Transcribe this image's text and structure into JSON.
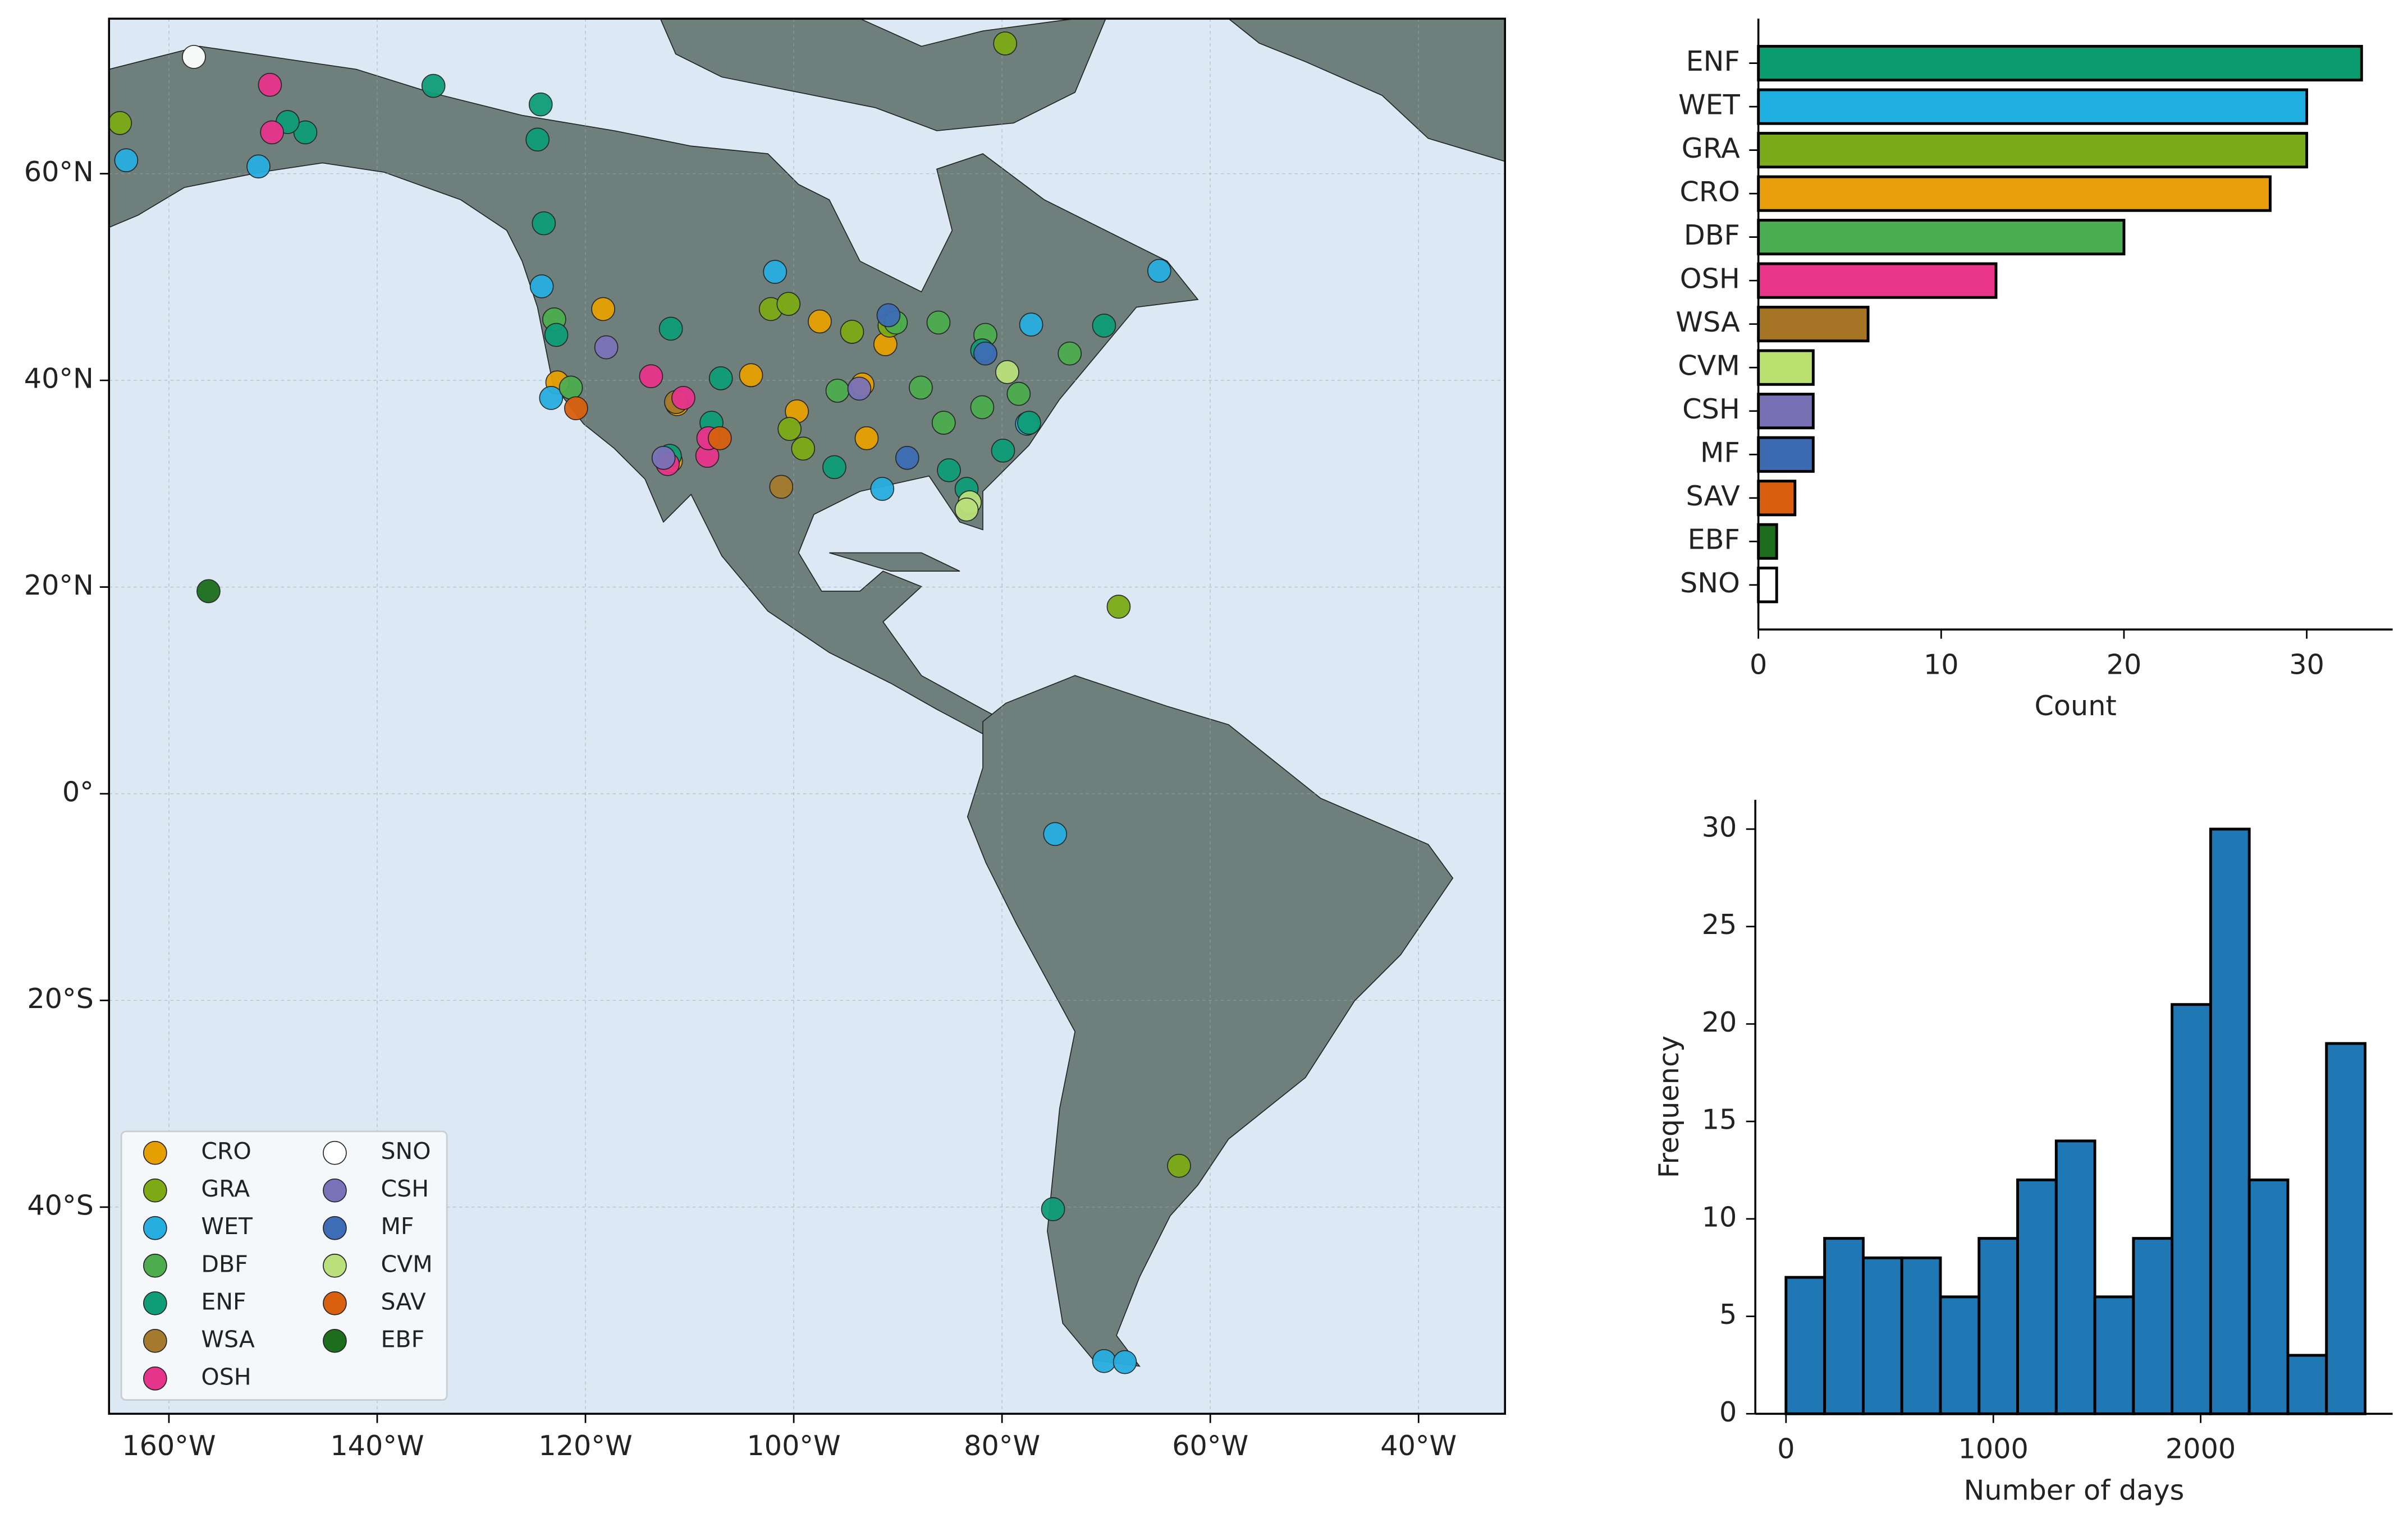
{
  "chart_data": [
    {
      "type": "scatter",
      "xlim": [
        -165.75,
        -31.7
      ],
      "ylim": [
        -60,
        75
      ],
      "xticks": [
        {
          "value": -160,
          "label": "160°W"
        },
        {
          "value": -140,
          "label": "140°W"
        },
        {
          "value": -120,
          "label": "120°W"
        },
        {
          "value": -100,
          "label": "100°W"
        },
        {
          "value": -80,
          "label": "80°W"
        },
        {
          "value": -60,
          "label": "60°W"
        },
        {
          "value": -40,
          "label": "40°W"
        }
      ],
      "yticks": [
        {
          "value": 60,
          "label": "60°N"
        },
        {
          "value": 40,
          "label": "40°N"
        },
        {
          "value": 20,
          "label": "20°N"
        },
        {
          "value": 0,
          "label": "0°"
        },
        {
          "value": -20,
          "label": "20°S"
        },
        {
          "value": -40,
          "label": "40°S"
        }
      ],
      "grid": true,
      "legend": "lower left",
      "series": [
        {
          "name": "CRO",
          "color": "#e69f00",
          "x": [
            -122.7,
            -118.3,
            -104.1,
            -99.7,
            -97.5,
            -93.4,
            -93.0,
            -91.2,
            -111.2,
            -111.8
          ],
          "y": [
            39.8,
            46.9,
            40.5,
            37.0,
            45.7,
            39.6,
            34.4,
            43.5,
            37.7,
            32.2
          ]
        },
        {
          "name": "GRA",
          "color": "#7cab16",
          "x": [
            -164.7,
            -102.2,
            -100.5,
            -94.4,
            -100.4,
            -99.1,
            -68.8,
            -63.0,
            -79.7,
            -90.8
          ],
          "y": [
            64.9,
            46.9,
            47.4,
            44.7,
            35.3,
            33.4,
            18.1,
            -36.0,
            72.6,
            45.3
          ]
        },
        {
          "name": "WET",
          "color": "#27aee0",
          "x": [
            -164.1,
            -151.4,
            -124.2,
            -101.8,
            -64.9,
            -77.2,
            -91.5,
            -74.9,
            -70.2,
            -68.2,
            -77.6,
            -123.3
          ],
          "y": [
            61.3,
            60.7,
            49.1,
            50.5,
            50.6,
            45.4,
            29.5,
            -3.9,
            -54.9,
            -55.0,
            35.8,
            38.3
          ]
        },
        {
          "name": "DBF",
          "color": "#4dad4e",
          "x": [
            -86.1,
            -87.8,
            -85.6,
            -81.9,
            -95.8,
            -90.2,
            -123.0,
            -121.4,
            -73.5,
            -78.4,
            -81.6
          ],
          "y": [
            45.6,
            39.3,
            35.9,
            37.4,
            39.0,
            45.6,
            45.9,
            39.3,
            42.6,
            38.7,
            44.4
          ]
        },
        {
          "name": "ENF",
          "color": "#0f9d78",
          "x": [
            -124.3,
            -124.6,
            -146.9,
            -148.6,
            -134.6,
            -124.0,
            -122.8,
            -111.8,
            -107.0,
            -107.9,
            -111.9,
            -96.1,
            -85.1,
            -79.9,
            -77.4,
            -70.2,
            -81.9,
            -83.4,
            -75.1
          ],
          "y": [
            66.7,
            63.3,
            64.0,
            65.0,
            68.5,
            55.2,
            44.4,
            45.0,
            40.2,
            35.9,
            32.7,
            31.6,
            31.3,
            33.2,
            35.9,
            45.3,
            42.9,
            29.5,
            -40.2
          ]
        },
        {
          "name": "WSA",
          "color": "#a67a2e",
          "x": [
            -101.2,
            -111.3
          ],
          "y": [
            29.7,
            37.9
          ]
        },
        {
          "name": "OSH",
          "color": "#e7348b",
          "x": [
            -150.3,
            -150.1,
            -113.7,
            -110.6,
            -112.1,
            -108.3,
            -108.2
          ],
          "y": [
            68.6,
            64.0,
            40.4,
            38.3,
            31.9,
            32.7,
            34.4
          ]
        },
        {
          "name": "SNO",
          "color": "#ffffff",
          "x": [
            -157.6
          ],
          "y": [
            71.3
          ]
        },
        {
          "name": "CSH",
          "color": "#7a72b8",
          "x": [
            -118.0,
            -112.5,
            -93.7
          ],
          "y": [
            43.2,
            32.5,
            39.2
          ]
        },
        {
          "name": "MF",
          "color": "#3d6db5",
          "x": [
            -90.9,
            -89.1,
            -81.6
          ],
          "y": [
            46.3,
            32.5,
            42.6
          ]
        },
        {
          "name": "CVM",
          "color": "#b9e07a",
          "x": [
            -79.5,
            -83.1,
            -83.4
          ],
          "y": [
            40.8,
            28.2,
            27.5
          ]
        },
        {
          "name": "SAV",
          "color": "#d9600e",
          "x": [
            -120.9,
            -107.1
          ],
          "y": [
            37.3,
            34.4
          ]
        },
        {
          "name": "EBF",
          "color": "#1c6e1c",
          "x": [
            -156.2
          ],
          "y": [
            19.6
          ]
        }
      ]
    },
    {
      "type": "barh",
      "categories": [
        "ENF",
        "WET",
        "GRA",
        "CRO",
        "DBF",
        "OSH",
        "WSA",
        "CVM",
        "CSH",
        "MF",
        "SAV",
        "EBF",
        "SNO"
      ],
      "values": [
        33,
        30,
        30,
        28,
        20,
        13,
        6,
        3,
        3,
        3,
        2,
        1,
        1
      ],
      "colors": [
        "#0a9c6e",
        "#1eaee0",
        "#7aab1a",
        "#e89e0a",
        "#4aad52",
        "#e8348b",
        "#a57425",
        "#b9e06e",
        "#7770b5",
        "#3b6ab0",
        "#d95f0e",
        "#1c6e1c",
        "#ffffff"
      ],
      "xlim": [
        0,
        34.7
      ],
      "xticks": [
        0,
        10,
        20,
        30
      ],
      "xlabel": "Count"
    },
    {
      "type": "histogram",
      "bins": [
        0,
        186.2,
        372.4,
        558.6,
        744.8,
        931,
        1117.2,
        1303.4,
        1489.6,
        1675.8,
        1862,
        2048.2,
        2234.4,
        2420.6,
        2606.8,
        2793
      ],
      "values": [
        7,
        9,
        8,
        8,
        6,
        9,
        12,
        14,
        6,
        9,
        21,
        30,
        12,
        3,
        19
      ],
      "color": "#1f77b4",
      "xlim": [
        -148,
        2926
      ],
      "ylim": [
        0,
        31.5
      ],
      "xticks": [
        0,
        1000,
        2000
      ],
      "yticks": [
        0,
        5,
        10,
        15,
        20,
        25,
        30
      ],
      "xlabel": "Number of days",
      "ylabel": "Frequency"
    }
  ]
}
